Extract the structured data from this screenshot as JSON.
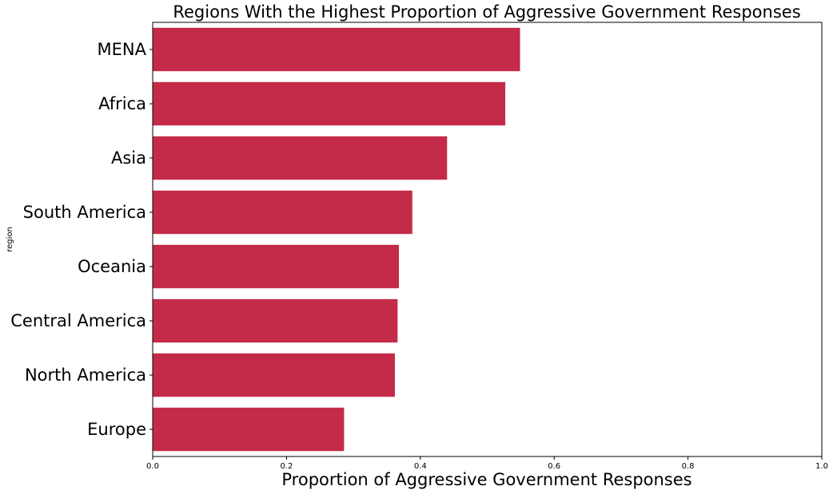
{
  "chart_data": {
    "type": "bar",
    "orientation": "horizontal",
    "title": "Regions With the Highest Proportion of Aggressive Government Responses",
    "xlabel": "Proportion of Aggressive Government Responses",
    "ylabel": "region",
    "categories": [
      "MENA",
      "Africa",
      "Asia",
      "South America",
      "Oceania",
      "Central America",
      "North America",
      "Europe"
    ],
    "values": [
      0.549,
      0.527,
      0.44,
      0.388,
      0.368,
      0.366,
      0.362,
      0.286
    ],
    "xlim": [
      0,
      1.0
    ],
    "xticks": [
      0.0,
      0.2,
      0.4,
      0.6,
      0.8,
      1.0
    ],
    "xtick_labels": [
      "0.0",
      "0.2",
      "0.4",
      "0.6",
      "0.8",
      "1.0"
    ],
    "bar_color": "#c42b48",
    "grid": false
  }
}
